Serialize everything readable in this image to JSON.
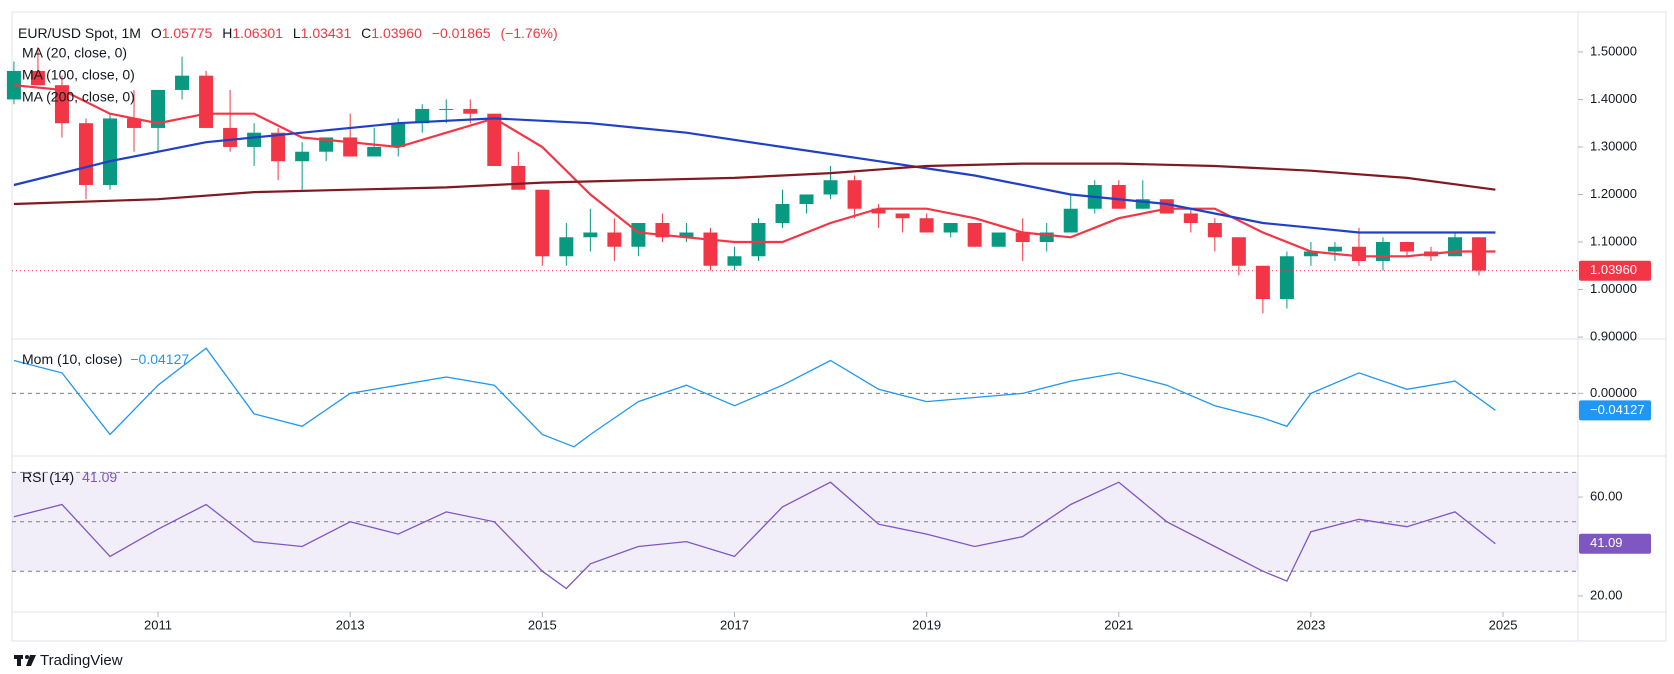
{
  "header": {
    "symbol": "EUR/USD Spot, 1M",
    "o_label": "O",
    "open": 1.05775,
    "h_label": "H",
    "high": 1.06301,
    "l_label": "L",
    "low": 1.03431,
    "c_label": "C",
    "close": {
      "value": 1.0396,
      "label": "1.03960"
    },
    "change": {
      "value": -0.01865,
      "label": "−0.01865"
    },
    "change_pct": {
      "value": -1.76,
      "label": "(−1.76%)"
    }
  },
  "chart_data": [
    {
      "type": "candlestick",
      "up_color": "#089981",
      "down_color": "#f23645",
      "x": [
        2009.5,
        2009.75,
        2010,
        2010.25,
        2010.5,
        2010.75,
        2011,
        2011.25,
        2011.5,
        2011.75,
        2012,
        2012.25,
        2012.5,
        2012.75,
        2013,
        2013.25,
        2013.5,
        2013.75,
        2014,
        2014.25,
        2014.5,
        2014.75,
        2015,
        2015.25,
        2015.5,
        2015.75,
        2016,
        2016.25,
        2016.5,
        2016.75,
        2017,
        2017.25,
        2017.5,
        2017.75,
        2018,
        2018.25,
        2018.5,
        2018.75,
        2019,
        2019.25,
        2019.5,
        2019.75,
        2020,
        2020.25,
        2020.5,
        2020.75,
        2021,
        2021.25,
        2021.5,
        2021.75,
        2022,
        2022.25,
        2022.5,
        2022.75,
        2023,
        2023.25,
        2023.5,
        2023.75,
        2024,
        2024.25,
        2024.5,
        2024.75
      ],
      "open": [
        1.4,
        1.46,
        1.43,
        1.35,
        1.22,
        1.36,
        1.34,
        1.42,
        1.45,
        1.34,
        1.3,
        1.33,
        1.27,
        1.29,
        1.32,
        1.28,
        1.3,
        1.35,
        1.38,
        1.38,
        1.37,
        1.26,
        1.21,
        1.07,
        1.11,
        1.12,
        1.09,
        1.14,
        1.11,
        1.12,
        1.05,
        1.07,
        1.14,
        1.18,
        1.2,
        1.23,
        1.17,
        1.16,
        1.15,
        1.12,
        1.14,
        1.09,
        1.12,
        1.1,
        1.12,
        1.17,
        1.22,
        1.17,
        1.19,
        1.16,
        1.14,
        1.11,
        1.05,
        0.98,
        1.07,
        1.08,
        1.09,
        1.06,
        1.1,
        1.08,
        1.07,
        1.11
      ],
      "high": [
        1.48,
        1.51,
        1.45,
        1.36,
        1.37,
        1.42,
        1.42,
        1.49,
        1.46,
        1.42,
        1.35,
        1.34,
        1.31,
        1.32,
        1.37,
        1.34,
        1.36,
        1.39,
        1.4,
        1.4,
        1.37,
        1.29,
        1.21,
        1.14,
        1.17,
        1.15,
        1.14,
        1.16,
        1.14,
        1.13,
        1.09,
        1.15,
        1.21,
        1.2,
        1.26,
        1.24,
        1.18,
        1.16,
        1.16,
        1.14,
        1.14,
        1.12,
        1.15,
        1.14,
        1.2,
        1.23,
        1.23,
        1.23,
        1.19,
        1.17,
        1.15,
        1.11,
        1.05,
        1.08,
        1.1,
        1.1,
        1.13,
        1.11,
        1.1,
        1.09,
        1.12,
        1.11
      ],
      "low": [
        1.39,
        1.43,
        1.32,
        1.19,
        1.21,
        1.29,
        1.29,
        1.4,
        1.34,
        1.29,
        1.26,
        1.23,
        1.21,
        1.27,
        1.28,
        1.28,
        1.28,
        1.33,
        1.35,
        1.35,
        1.26,
        1.21,
        1.05,
        1.05,
        1.08,
        1.06,
        1.07,
        1.1,
        1.1,
        1.04,
        1.04,
        1.06,
        1.13,
        1.16,
        1.19,
        1.15,
        1.13,
        1.12,
        1.12,
        1.11,
        1.09,
        1.09,
        1.06,
        1.08,
        1.12,
        1.16,
        1.17,
        1.17,
        1.16,
        1.12,
        1.08,
        1.03,
        0.95,
        0.96,
        1.05,
        1.06,
        1.05,
        1.04,
        1.07,
        1.06,
        1.07,
        1.03
      ],
      "close": [
        1.46,
        1.43,
        1.35,
        1.22,
        1.36,
        1.34,
        1.42,
        1.45,
        1.34,
        1.3,
        1.33,
        1.27,
        1.29,
        1.32,
        1.28,
        1.3,
        1.35,
        1.38,
        1.38,
        1.37,
        1.26,
        1.21,
        1.07,
        1.11,
        1.12,
        1.09,
        1.14,
        1.11,
        1.12,
        1.05,
        1.07,
        1.14,
        1.18,
        1.2,
        1.23,
        1.17,
        1.16,
        1.15,
        1.12,
        1.14,
        1.09,
        1.12,
        1.1,
        1.12,
        1.17,
        1.22,
        1.17,
        1.19,
        1.16,
        1.14,
        1.11,
        1.05,
        0.98,
        1.07,
        1.08,
        1.09,
        1.06,
        1.1,
        1.08,
        1.07,
        1.11,
        1.04
      ],
      "lines": [
        {
          "name": "MA (20, close, 0)",
          "color": "#f23645",
          "x": [
            2009.5,
            2010,
            2010.5,
            2011,
            2011.5,
            2012,
            2012.5,
            2013,
            2013.5,
            2014,
            2014.5,
            2015,
            2015.5,
            2016,
            2016.5,
            2017,
            2017.5,
            2018,
            2018.5,
            2019,
            2019.5,
            2020,
            2020.5,
            2021,
            2021.5,
            2022,
            2022.5,
            2023,
            2023.5,
            2024,
            2024.5,
            2024.92
          ],
          "values": [
            1.43,
            1.42,
            1.37,
            1.35,
            1.37,
            1.37,
            1.32,
            1.31,
            1.3,
            1.33,
            1.36,
            1.3,
            1.2,
            1.12,
            1.11,
            1.1,
            1.1,
            1.14,
            1.17,
            1.17,
            1.15,
            1.12,
            1.11,
            1.15,
            1.17,
            1.17,
            1.12,
            1.08,
            1.07,
            1.07,
            1.08,
            1.08
          ]
        },
        {
          "name": "MA (100, close, 0)",
          "color": "#2040c8",
          "x": [
            2009.5,
            2010.5,
            2011.5,
            2012.5,
            2013.5,
            2014.5,
            2015.5,
            2016.5,
            2017.5,
            2018.5,
            2019.5,
            2020.5,
            2021.5,
            2022.5,
            2023,
            2023.5,
            2024,
            2024.92
          ],
          "values": [
            1.22,
            1.27,
            1.31,
            1.33,
            1.35,
            1.36,
            1.35,
            1.33,
            1.3,
            1.27,
            1.24,
            1.2,
            1.18,
            1.14,
            1.13,
            1.12,
            1.12,
            1.12
          ]
        },
        {
          "name": "MA (200, close, 0)",
          "color": "#801922",
          "x": [
            2009.5,
            2011,
            2012,
            2013,
            2014,
            2015,
            2016,
            2017,
            2018,
            2019,
            2020,
            2021,
            2022,
            2023,
            2024,
            2024.92
          ],
          "values": [
            1.18,
            1.19,
            1.205,
            1.21,
            1.215,
            1.225,
            1.23,
            1.235,
            1.245,
            1.26,
            1.265,
            1.265,
            1.26,
            1.25,
            1.235,
            1.21
          ]
        }
      ],
      "xlim": [
        2009.48,
        2025.78
      ],
      "xticks": [
        2011,
        2013,
        2015,
        2017,
        2019,
        2021,
        2023,
        2025
      ],
      "ylim": [
        0.898,
        1.584
      ],
      "yticks": [
        {
          "value": 0.9,
          "label": "0.90000"
        },
        {
          "value": 1.0,
          "label": "1.00000"
        },
        {
          "value": 1.1,
          "label": "1.10000"
        },
        {
          "value": 1.2,
          "label": "1.20000"
        },
        {
          "value": 1.3,
          "label": "1.30000"
        },
        {
          "value": 1.4,
          "label": "1.40000"
        },
        {
          "value": 1.5,
          "label": "1.50000"
        }
      ]
    },
    {
      "type": "line",
      "title": "Mom (10, close)",
      "color": "#2196f3",
      "current": {
        "value": -0.04127,
        "label": "−0.04127"
      },
      "x": [
        2009.5,
        2010,
        2010.5,
        2011,
        2011.5,
        2012,
        2012.5,
        2013,
        2013.5,
        2014,
        2014.5,
        2015,
        2015.33,
        2015.5,
        2016,
        2016.5,
        2017,
        2017.5,
        2018,
        2018.5,
        2019,
        2019.5,
        2020,
        2020.5,
        2021,
        2021.5,
        2022,
        2022.5,
        2022.75,
        2023,
        2023.5,
        2024,
        2024.5,
        2024.92
      ],
      "values": [
        0.08,
        0.05,
        -0.1,
        0.02,
        0.11,
        -0.05,
        -0.08,
        0.0,
        0.02,
        0.04,
        0.02,
        -0.1,
        -0.13,
        -0.1,
        -0.02,
        0.02,
        -0.03,
        0.02,
        0.08,
        0.01,
        -0.02,
        -0.01,
        0.0,
        0.03,
        0.05,
        0.02,
        -0.03,
        -0.06,
        -0.08,
        0.0,
        0.05,
        0.01,
        0.03,
        -0.04127
      ],
      "xlim": [
        2009.48,
        2025.78
      ],
      "ylim": [
        -0.15,
        0.13
      ],
      "yticks": [
        {
          "value": 0,
          "label": "0.00000"
        }
      ],
      "levels": [
        0
      ]
    },
    {
      "type": "line",
      "title": "RSI (14)",
      "color": "#7e57c2",
      "current": 41.09,
      "x": [
        2009.5,
        2010,
        2010.5,
        2011,
        2011.5,
        2012,
        2012.5,
        2013,
        2013.5,
        2014,
        2014.5,
        2015,
        2015.25,
        2015.5,
        2016,
        2016.5,
        2017,
        2017.5,
        2018,
        2018.5,
        2019,
        2019.5,
        2020,
        2020.5,
        2021,
        2021.5,
        2022,
        2022.5,
        2022.75,
        2023,
        2023.5,
        2024,
        2024.5,
        2024.92
      ],
      "values": [
        52,
        57,
        36,
        47,
        57,
        42,
        40,
        50,
        45,
        54,
        50,
        30,
        23,
        33,
        40,
        42,
        36,
        56,
        66,
        49,
        45,
        40,
        44,
        57,
        66,
        50,
        40,
        30,
        26,
        46,
        51,
        48,
        54,
        41.09
      ],
      "xlim": [
        2009.48,
        2025.78
      ],
      "ylim": [
        13.5,
        75.8
      ],
      "yticks": [
        {
          "value": 20,
          "label": "20.00"
        },
        {
          "value": 60,
          "label": "60.00"
        }
      ],
      "band": [
        30,
        70
      ],
      "levels": [
        30,
        50,
        70
      ]
    }
  ],
  "footer": {
    "brand": "TradingView"
  }
}
